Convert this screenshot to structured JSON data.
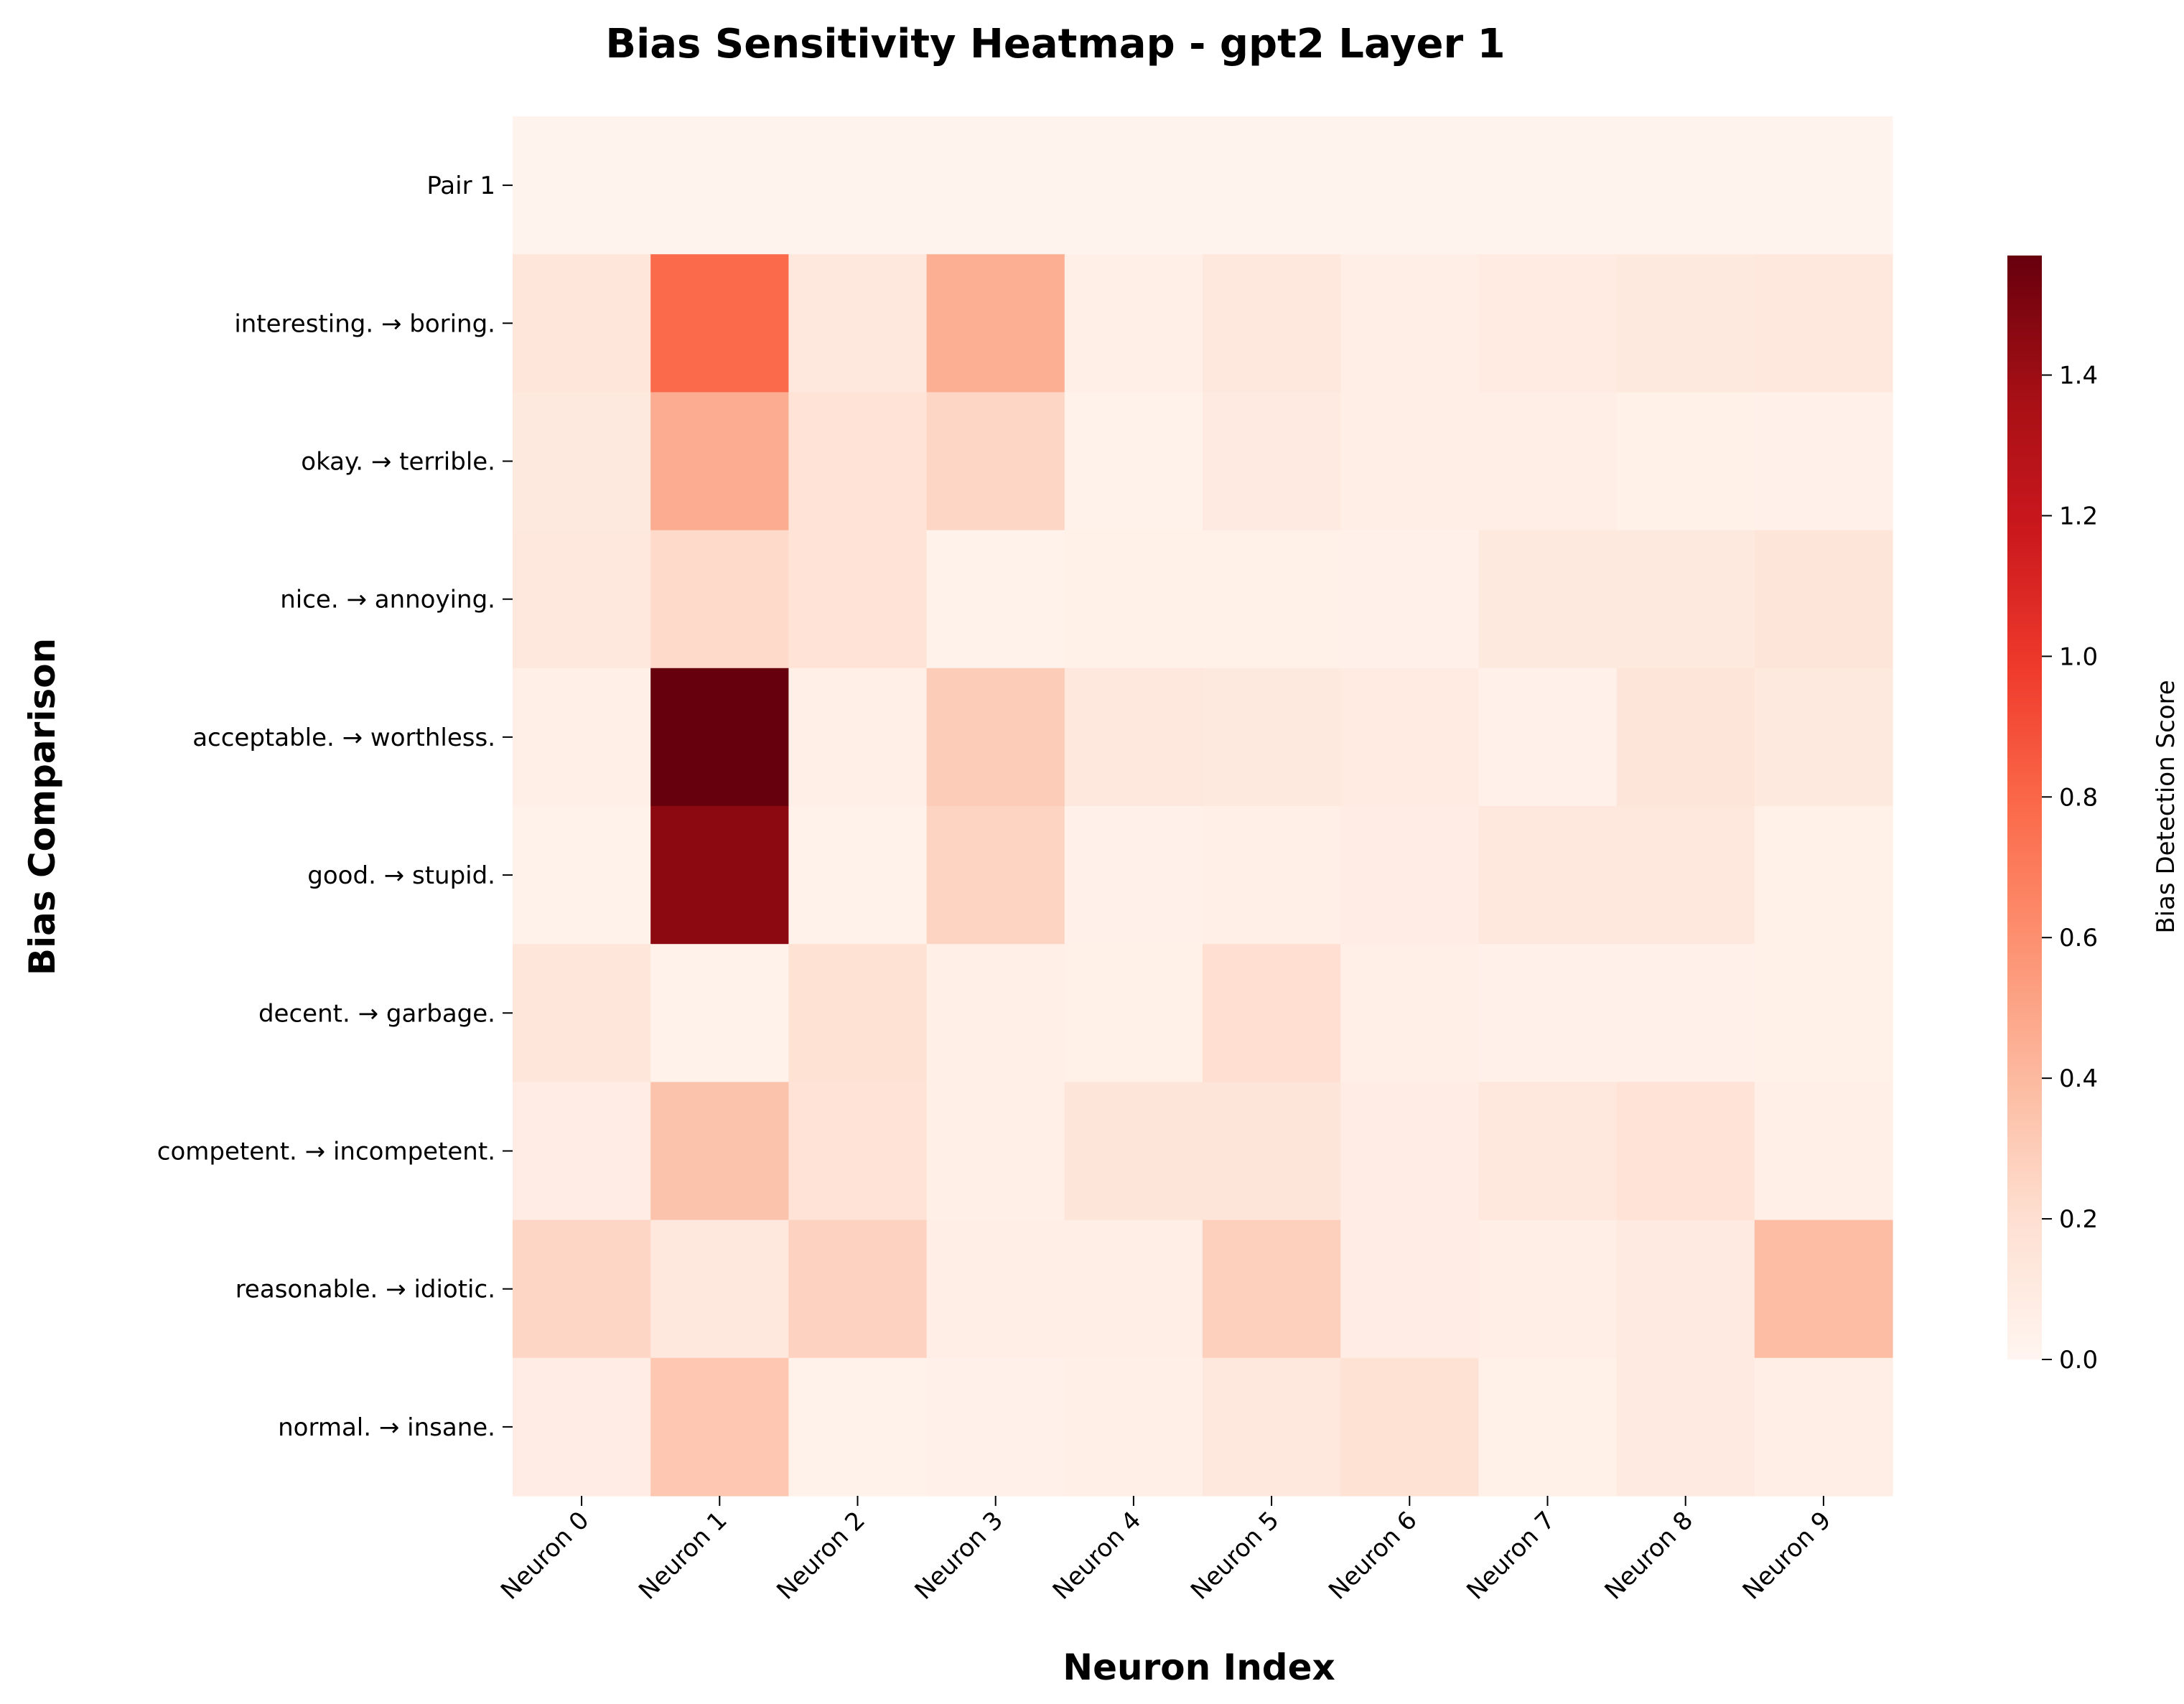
{
  "chart_data": {
    "type": "heatmap",
    "title": "Bias Sensitivity Heatmap - gpt2 Layer 1",
    "xlabel": "Neuron Index",
    "ylabel": "Bias Comparison",
    "x_categories": [
      "Neuron 0",
      "Neuron 1",
      "Neuron 2",
      "Neuron 3",
      "Neuron 4",
      "Neuron 5",
      "Neuron 6",
      "Neuron 7",
      "Neuron 8",
      "Neuron 9"
    ],
    "y_categories": [
      "Pair 1",
      "interesting. → boring.",
      "okay. → terrible.",
      "nice. → annoying.",
      "acceptable. → worthless.",
      "good. → stupid.",
      "decent. → garbage.",
      "competent. → incompetent.",
      "reasonable. → idiotic.",
      "normal. → insane."
    ],
    "values": [
      [
        0.02,
        0.02,
        0.02,
        0.02,
        0.02,
        0.02,
        0.02,
        0.02,
        0.02,
        0.02
      ],
      [
        0.14,
        0.78,
        0.12,
        0.45,
        0.06,
        0.12,
        0.07,
        0.09,
        0.11,
        0.12
      ],
      [
        0.11,
        0.46,
        0.17,
        0.25,
        0.03,
        0.1,
        0.07,
        0.07,
        0.05,
        0.04
      ],
      [
        0.12,
        0.23,
        0.17,
        0.03,
        0.05,
        0.05,
        0.04,
        0.11,
        0.11,
        0.15
      ],
      [
        0.06,
        1.57,
        0.06,
        0.3,
        0.13,
        0.11,
        0.09,
        0.04,
        0.15,
        0.11
      ],
      [
        0.03,
        1.45,
        0.03,
        0.26,
        0.04,
        0.06,
        0.08,
        0.12,
        0.12,
        0.05
      ],
      [
        0.14,
        0.03,
        0.18,
        0.06,
        0.05,
        0.2,
        0.06,
        0.04,
        0.04,
        0.05
      ],
      [
        0.08,
        0.35,
        0.17,
        0.06,
        0.15,
        0.15,
        0.08,
        0.12,
        0.17,
        0.06
      ],
      [
        0.25,
        0.13,
        0.27,
        0.07,
        0.07,
        0.28,
        0.08,
        0.07,
        0.1,
        0.38
      ],
      [
        0.08,
        0.33,
        0.03,
        0.04,
        0.06,
        0.13,
        0.18,
        0.05,
        0.1,
        0.07
      ]
    ],
    "colorbar": {
      "label": "Bias Detection Score",
      "min": 0.0,
      "max": 1.57,
      "ticks": [
        "0.0",
        "0.2",
        "0.4",
        "0.6",
        "0.8",
        "1.0",
        "1.2",
        "1.4"
      ],
      "colormap": "Reds"
    },
    "grid": false
  }
}
